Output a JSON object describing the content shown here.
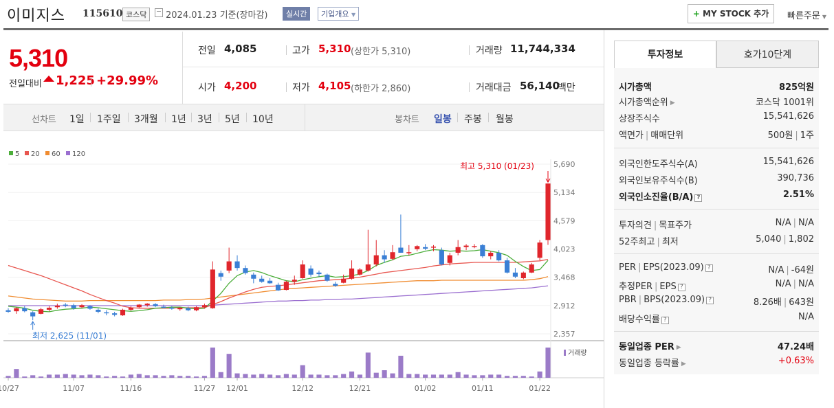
{
  "header": {
    "name": "이미지스",
    "code": "115610",
    "market": "코스닥",
    "date": "2024.01.23  기준(장마감)",
    "live": "실시간",
    "company_info": "기업개요",
    "mystock": "MY STOCK 추가",
    "quick_order": "빠른주문"
  },
  "price": {
    "current": "5,310",
    "diff_label": "전일대비",
    "diff": "1,225",
    "rate": "+29.99%"
  },
  "stats": {
    "prev_label": "전일",
    "prev": "4,085",
    "high_label": "고가",
    "high": "5,310",
    "high_sub": "(상한가 5,310)",
    "volume_label": "거래량",
    "volume": "11,744,334",
    "open_label": "시가",
    "open": "4,200",
    "low_label": "저가",
    "low": "4,105",
    "low_sub": "(하한가 2,860)",
    "amount_label": "거래대금",
    "amount": "56,140",
    "amount_unit": "백만"
  },
  "tabs": {
    "line_chart": "선차트",
    "periods": [
      "1일",
      "1주일",
      "3개월",
      "1년",
      "3년",
      "5년",
      "10년"
    ],
    "candle_chart": "봉차트",
    "candles": [
      "일봉",
      "주봉",
      "월봉"
    ],
    "candle_active": 0
  },
  "chart_data": {
    "type": "candlestick",
    "legend": [
      "5",
      "20",
      "60",
      "120"
    ],
    "ma_colors": [
      "#4cae3a",
      "#e8564f",
      "#f08c30",
      "#9b6fd0"
    ],
    "y_ticks": [
      "5,690",
      "5,134",
      "4,579",
      "4,023",
      "3,468",
      "2,912",
      "2,357"
    ],
    "ylim": [
      2357,
      5690
    ],
    "x_ticks": [
      "10/27",
      "11/07",
      "11/16",
      "11/27",
      "12/01",
      "12/12",
      "12/21",
      "01/02",
      "01/11",
      "01/22"
    ],
    "annotation_high": "최고 5,310 (01/23)",
    "annotation_low": "최저 2,625 (11/01)",
    "volume_label": "거래량",
    "up_color": "#e0262c",
    "down_color": "#3a7fd5",
    "candles": [
      {
        "o": 2820,
        "h": 2860,
        "l": 2770,
        "c": 2790
      },
      {
        "o": 2800,
        "h": 2880,
        "l": 2750,
        "c": 2860
      },
      {
        "o": 2860,
        "h": 2900,
        "l": 2780,
        "c": 2800
      },
      {
        "o": 2780,
        "h": 2800,
        "l": 2625,
        "c": 2700
      },
      {
        "o": 2750,
        "h": 2870,
        "l": 2740,
        "c": 2840
      },
      {
        "o": 2830,
        "h": 2900,
        "l": 2800,
        "c": 2870
      },
      {
        "o": 2880,
        "h": 2950,
        "l": 2850,
        "c": 2910
      },
      {
        "o": 2930,
        "h": 2960,
        "l": 2880,
        "c": 2920
      },
      {
        "o": 2920,
        "h": 2950,
        "l": 2830,
        "c": 2860
      },
      {
        "o": 2880,
        "h": 2940,
        "l": 2860,
        "c": 2920
      },
      {
        "o": 2900,
        "h": 2920,
        "l": 2830,
        "c": 2850
      },
      {
        "o": 2830,
        "h": 2860,
        "l": 2760,
        "c": 2790
      },
      {
        "o": 2780,
        "h": 2820,
        "l": 2720,
        "c": 2760
      },
      {
        "o": 2760,
        "h": 2790,
        "l": 2700,
        "c": 2730
      },
      {
        "o": 2720,
        "h": 2850,
        "l": 2710,
        "c": 2830
      },
      {
        "o": 2830,
        "h": 2900,
        "l": 2810,
        "c": 2870
      },
      {
        "o": 2880,
        "h": 2940,
        "l": 2860,
        "c": 2930
      },
      {
        "o": 2920,
        "h": 2960,
        "l": 2890,
        "c": 2950
      },
      {
        "o": 2940,
        "h": 2960,
        "l": 2880,
        "c": 2900
      },
      {
        "o": 2890,
        "h": 2930,
        "l": 2860,
        "c": 2880
      },
      {
        "o": 2870,
        "h": 2900,
        "l": 2830,
        "c": 2850
      },
      {
        "o": 2840,
        "h": 2880,
        "l": 2810,
        "c": 2870
      },
      {
        "o": 2860,
        "h": 2890,
        "l": 2800,
        "c": 2820
      },
      {
        "o": 2820,
        "h": 2900,
        "l": 2800,
        "c": 2880
      },
      {
        "o": 2880,
        "h": 2950,
        "l": 2850,
        "c": 2920
      },
      {
        "o": 2860,
        "h": 3780,
        "l": 2850,
        "c": 3620
      },
      {
        "o": 3550,
        "h": 3600,
        "l": 3400,
        "c": 3480
      },
      {
        "o": 3600,
        "h": 4050,
        "l": 3550,
        "c": 3780
      },
      {
        "o": 3780,
        "h": 3900,
        "l": 3600,
        "c": 3650
      },
      {
        "o": 3650,
        "h": 3700,
        "l": 3520,
        "c": 3550
      },
      {
        "o": 3520,
        "h": 3560,
        "l": 3350,
        "c": 3440
      },
      {
        "o": 3440,
        "h": 3500,
        "l": 3360,
        "c": 3380
      },
      {
        "o": 3400,
        "h": 3450,
        "l": 3340,
        "c": 3350
      },
      {
        "o": 3320,
        "h": 3360,
        "l": 3200,
        "c": 3210
      },
      {
        "o": 3220,
        "h": 3400,
        "l": 3210,
        "c": 3380
      },
      {
        "o": 3380,
        "h": 3500,
        "l": 3320,
        "c": 3420
      },
      {
        "o": 3450,
        "h": 3800,
        "l": 3440,
        "c": 3720
      },
      {
        "o": 3640,
        "h": 3700,
        "l": 3480,
        "c": 3520
      },
      {
        "o": 3560,
        "h": 3600,
        "l": 3480,
        "c": 3530
      },
      {
        "o": 3520,
        "h": 3540,
        "l": 3380,
        "c": 3400
      },
      {
        "o": 3340,
        "h": 3380,
        "l": 3280,
        "c": 3300
      },
      {
        "o": 3360,
        "h": 3520,
        "l": 3350,
        "c": 3440
      },
      {
        "o": 3440,
        "h": 3800,
        "l": 3420,
        "c": 3640
      },
      {
        "o": 3520,
        "h": 3650,
        "l": 3500,
        "c": 3620
      },
      {
        "o": 3600,
        "h": 4400,
        "l": 3580,
        "c": 3720
      },
      {
        "o": 3720,
        "h": 4200,
        "l": 3680,
        "c": 3900
      },
      {
        "o": 3900,
        "h": 4000,
        "l": 3750,
        "c": 3820
      },
      {
        "o": 3830,
        "h": 4100,
        "l": 3800,
        "c": 3960
      },
      {
        "o": 4050,
        "h": 4700,
        "l": 3950,
        "c": 3950
      },
      {
        "o": 3950,
        "h": 4100,
        "l": 3900,
        "c": 3960
      },
      {
        "o": 4020,
        "h": 4100,
        "l": 3980,
        "c": 4080
      },
      {
        "o": 4060,
        "h": 4120,
        "l": 4000,
        "c": 4030
      },
      {
        "o": 4050,
        "h": 4100,
        "l": 3980,
        "c": 4070
      },
      {
        "o": 4000,
        "h": 4050,
        "l": 3700,
        "c": 3720
      },
      {
        "o": 3750,
        "h": 3950,
        "l": 3700,
        "c": 3900
      },
      {
        "o": 3950,
        "h": 4200,
        "l": 3900,
        "c": 4060
      },
      {
        "o": 4060,
        "h": 4120,
        "l": 4000,
        "c": 4090
      },
      {
        "o": 4070,
        "h": 4120,
        "l": 4040,
        "c": 4080
      },
      {
        "o": 4100,
        "h": 4120,
        "l": 3850,
        "c": 3880
      },
      {
        "o": 3880,
        "h": 3980,
        "l": 3820,
        "c": 3950
      },
      {
        "o": 3950,
        "h": 4000,
        "l": 3780,
        "c": 3800
      },
      {
        "o": 3800,
        "h": 3850,
        "l": 3540,
        "c": 3560
      },
      {
        "o": 3560,
        "h": 3650,
        "l": 3450,
        "c": 3480
      },
      {
        "o": 3450,
        "h": 3580,
        "l": 3430,
        "c": 3560
      },
      {
        "o": 3560,
        "h": 3750,
        "l": 3550,
        "c": 3720
      },
      {
        "o": 3850,
        "h": 4200,
        "l": 3800,
        "c": 4150
      },
      {
        "o": 4200,
        "h": 5310,
        "l": 4105,
        "c": 5310
      }
    ],
    "volumes": [
      3,
      14,
      2,
      4,
      2,
      5,
      5,
      6,
      5,
      4,
      5,
      4,
      2,
      3,
      2,
      5,
      6,
      4,
      4,
      3,
      4,
      3,
      3,
      2,
      3,
      48,
      9,
      38,
      7,
      6,
      5,
      6,
      5,
      4,
      6,
      5,
      20,
      5,
      5,
      4,
      4,
      6,
      10,
      5,
      40,
      8,
      12,
      7,
      35,
      6,
      6,
      5,
      5,
      5,
      5,
      9,
      5,
      4,
      4,
      5,
      5,
      3,
      3,
      3,
      2,
      10,
      48
    ],
    "ma5": [
      2900,
      2880,
      2860,
      2820,
      2800,
      2790,
      2820,
      2840,
      2850,
      2860,
      2880,
      2870,
      2850,
      2830,
      2810,
      2800,
      2810,
      2830,
      2860,
      2870,
      2880,
      2880,
      2860,
      2850,
      2860,
      3000,
      3150,
      3350,
      3500,
      3570,
      3600,
      3560,
      3500,
      3450,
      3400,
      3380,
      3420,
      3450,
      3480,
      3500,
      3470,
      3480,
      3500,
      3530,
      3600,
      3700,
      3760,
      3810,
      3880,
      3900,
      3940,
      3980,
      4010,
      4000,
      3980,
      3990,
      3980,
      3990,
      4010,
      3980,
      3950,
      3900,
      3780,
      3680,
      3600,
      3620,
      3800
    ],
    "ma20": [
      3700,
      3650,
      3600,
      3550,
      3500,
      3440,
      3380,
      3320,
      3260,
      3200,
      3130,
      3070,
      3010,
      2960,
      2900,
      2870,
      2860,
      2860,
      2860,
      2860,
      2860,
      2870,
      2870,
      2870,
      2870,
      2930,
      2990,
      3060,
      3120,
      3180,
      3230,
      3270,
      3290,
      3300,
      3320,
      3340,
      3360,
      3380,
      3400,
      3410,
      3420,
      3430,
      3450,
      3470,
      3500,
      3530,
      3560,
      3580,
      3600,
      3620,
      3640,
      3660,
      3690,
      3710,
      3730,
      3740,
      3750,
      3760,
      3760,
      3760,
      3760,
      3760,
      3760,
      3770,
      3780,
      3790,
      3820
    ],
    "ma60": [
      3100,
      3080,
      3060,
      3040,
      3030,
      3020,
      3010,
      3000,
      3000,
      3000,
      3010,
      3010,
      3010,
      3010,
      3010,
      3010,
      3010,
      3010,
      3010,
      3020,
      3020,
      3020,
      3030,
      3030,
      3040,
      3060,
      3080,
      3100,
      3120,
      3140,
      3160,
      3180,
      3200,
      3220,
      3240,
      3250,
      3260,
      3270,
      3280,
      3290,
      3300,
      3310,
      3320,
      3330,
      3340,
      3350,
      3360,
      3370,
      3380,
      3390,
      3400,
      3400,
      3400,
      3410,
      3410,
      3410,
      3410,
      3410,
      3410,
      3410,
      3410,
      3410,
      3410,
      3410,
      3420,
      3440,
      3480
    ],
    "ma120": [
      2910,
      2910,
      2910,
      2910,
      2910,
      2910,
      2910,
      2910,
      2910,
      2910,
      2910,
      2910,
      2910,
      2910,
      2910,
      2910,
      2910,
      2910,
      2910,
      2910,
      2910,
      2910,
      2910,
      2910,
      2910,
      2920,
      2930,
      2940,
      2950,
      2960,
      2970,
      2980,
      2990,
      3000,
      3000,
      3010,
      3010,
      3020,
      3020,
      3030,
      3030,
      3040,
      3040,
      3050,
      3060,
      3070,
      3080,
      3090,
      3100,
      3110,
      3120,
      3130,
      3140,
      3150,
      3160,
      3170,
      3180,
      3190,
      3200,
      3210,
      3220,
      3230,
      3240,
      3250,
      3260,
      3280,
      3300
    ]
  },
  "panel": {
    "tab_invest": "투자정보",
    "tab_hoga": "호가10단계",
    "market_cap_label": "시가총액",
    "market_cap": "825억원",
    "rank_label": "시가총액순위",
    "rank": "코스닥 1001위",
    "shares_label": "상장주식수",
    "shares": "15,541,626",
    "par_label": "액면가",
    "unit_label": "매매단위",
    "par": "500원",
    "unit": "1주",
    "foreign_limit_label": "외국인한도주식수(A)",
    "foreign_limit": "15,541,626",
    "foreign_hold_label": "외국인보유주식수(B)",
    "foreign_hold": "390,736",
    "foreign_rate_label": "외국인소진율(B/A)",
    "foreign_rate": "2.51%",
    "opinion_label": "투자의견",
    "target_label": "목표주가",
    "opinion": "N/A",
    "target": "N/A",
    "w52_high_label": "52주최고",
    "w52_low_label": "최저",
    "w52_high": "5,040",
    "w52_low": "1,802",
    "per_label": "PER",
    "eps_label": "EPS(2023.09)",
    "per": "N/A",
    "eps": "-64원",
    "est_per_label": "추정PER",
    "est_eps_label": "EPS",
    "est_per": "N/A",
    "est_eps": "N/A",
    "pbr_label": "PBR",
    "bps_label": "BPS(2023.09)",
    "pbr": "8.26배",
    "bps": "643원",
    "div_label": "배당수익률",
    "div": "N/A",
    "ind_per_label": "동일업종 PER",
    "ind_per": "47.24배",
    "ind_rate_label": "동일업종 등락률",
    "ind_rate": "+0.63%"
  }
}
